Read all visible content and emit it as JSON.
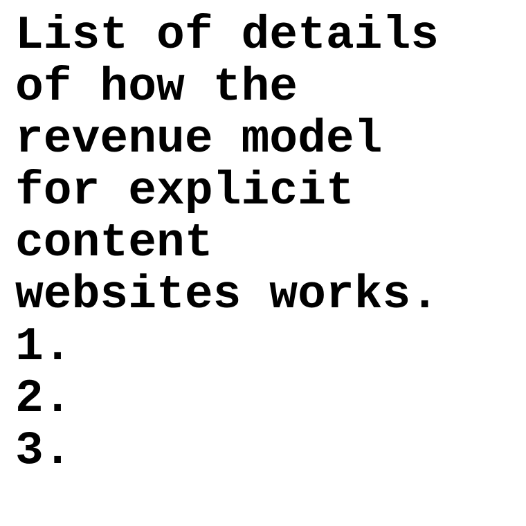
{
  "document": {
    "heading_lines": [
      "List of details",
      "of how the",
      "revenue model",
      "for explicit",
      "content",
      "websites works."
    ],
    "list_items": [
      "1.",
      "2.",
      "3."
    ]
  }
}
